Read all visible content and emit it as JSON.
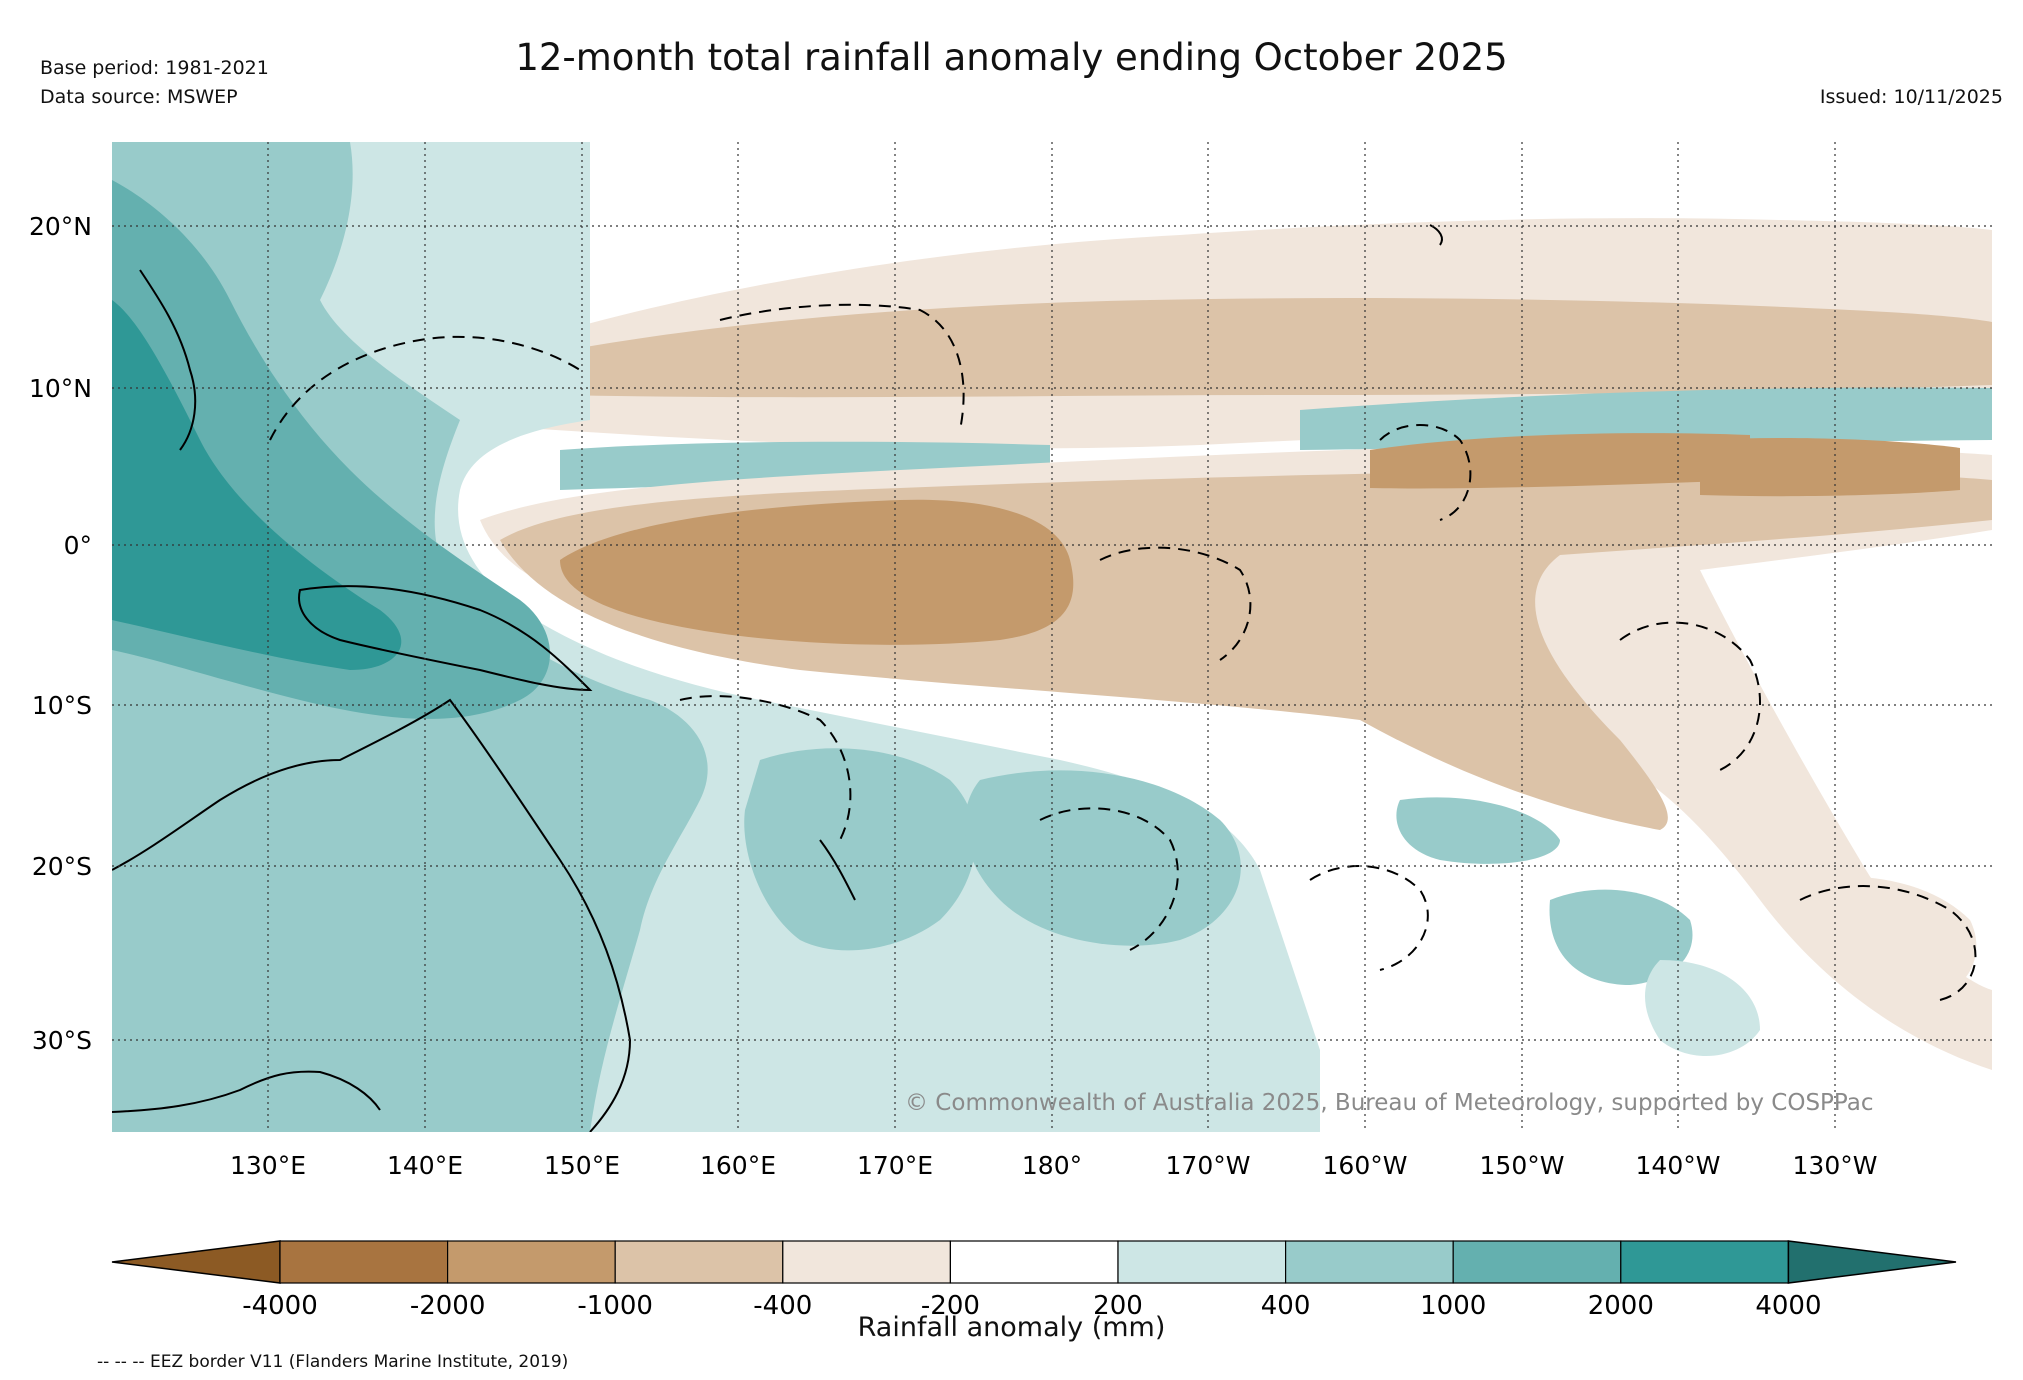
{
  "header": {
    "title": "12-month total rainfall anomaly ending October 2025",
    "base_period": "Base period: 1981-2021",
    "data_source": "Data source: MSWEP",
    "issued": "Issued: 10/11/2025"
  },
  "map": {
    "lat_labels": [
      "20°N",
      "10°N",
      "0°",
      "10°S",
      "20°S",
      "30°S"
    ],
    "lon_labels": [
      "130°E",
      "140°E",
      "150°E",
      "160°E",
      "170°E",
      "180°",
      "170°W",
      "160°W",
      "150°W",
      "140°W",
      "130°W"
    ],
    "copyright": "© Commonwealth of Australia 2025, Bureau of Meteorology, supported by COSPPac",
    "colors": {
      "dry_extreme": "#8c5a24",
      "dry_4000": "#a87440",
      "dry_2000": "#c49a6c",
      "dry_1000": "#dcc3a8",
      "dry_400": "#f1e6dc",
      "neutral": "#ffffff",
      "wet_200": "#cde6e5",
      "wet_400": "#98cbca",
      "wet_1000": "#64b0af",
      "wet_2000": "#2f9896",
      "wet_extreme": "#22706e"
    }
  },
  "colorbar": {
    "title": "Rainfall anomaly (mm)",
    "tick_labels": [
      "-4000",
      "-2000",
      "-1000",
      "-400",
      "-200",
      "200",
      "400",
      "1000",
      "2000",
      "4000"
    ],
    "segment_colors": [
      "#a87440",
      "#c49a6c",
      "#dcc3a8",
      "#f1e6dc",
      "#ffffff",
      "#cde6e5",
      "#98cbca",
      "#64b0af",
      "#2f9896"
    ],
    "low_extend_color": "#8c5a24",
    "high_extend_color": "#22706e"
  },
  "footer": {
    "eez_note": "-- -- -- EEZ border V11 (Flanders Marine Institute, 2019)"
  }
}
